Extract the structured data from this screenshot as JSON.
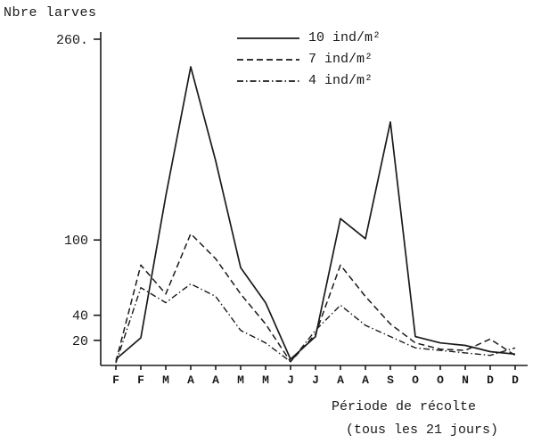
{
  "colors": {
    "ink": "#1a1a1a",
    "background": "#ffffff"
  },
  "chart_data": {
    "type": "line",
    "title": "",
    "ylabel": "Nbre larves",
    "xlabel": "Période de récolte",
    "xlabel_sub": "(tous les 21 jours)",
    "ylim": [
      0,
      260
    ],
    "grid": false,
    "legend_position": "top-center",
    "y_ticks": [
      {
        "value": 20,
        "label": "20"
      },
      {
        "value": 40,
        "label": "40"
      },
      {
        "value": 100,
        "label": "100"
      },
      {
        "value": 260,
        "label": "260."
      }
    ],
    "categories": [
      "F",
      "F",
      "M",
      "A",
      "A",
      "M",
      "M",
      "J",
      "J",
      "A",
      "A",
      "S",
      "O",
      "O",
      "N",
      "D",
      "D"
    ],
    "series": [
      {
        "name": "10 ind/m²",
        "style": "solid",
        "values": [
          5,
          22,
          135,
          238,
          163,
          78,
          50,
          5,
          23,
          117,
          101,
          194,
          23,
          18,
          16,
          11,
          9
        ]
      },
      {
        "name": "7 ind/m²",
        "style": "dashed",
        "values": [
          3,
          80,
          57,
          105,
          85,
          57,
          33,
          3,
          25,
          80,
          55,
          33,
          18,
          13,
          12,
          21,
          8
        ]
      },
      {
        "name": "4 ind/m²",
        "style": "dashdot",
        "values": [
          2,
          62,
          50,
          65,
          55,
          28,
          18,
          3,
          28,
          48,
          32,
          23,
          14,
          12,
          10,
          8,
          14
        ]
      }
    ]
  }
}
